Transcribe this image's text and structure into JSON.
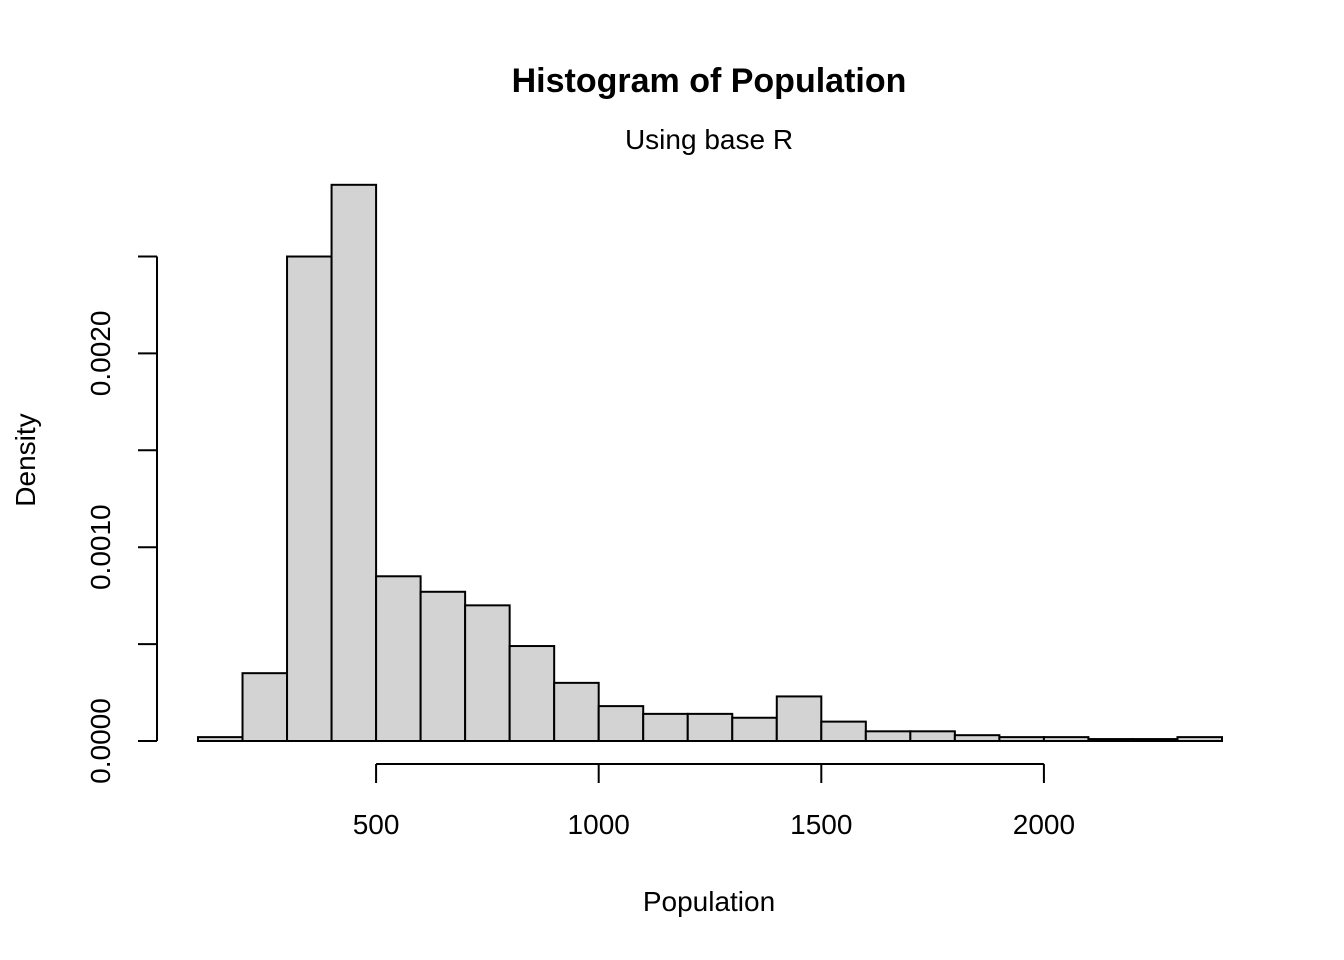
{
  "chart_data": {
    "type": "bar",
    "title": "Histogram of Population",
    "subtitle": "Using base R",
    "xlabel": "Population",
    "ylabel": "Density",
    "bin_width": 100,
    "bins": [
      {
        "start": 100,
        "end": 200,
        "density": 2e-05
      },
      {
        "start": 200,
        "end": 300,
        "density": 0.00035
      },
      {
        "start": 300,
        "end": 400,
        "density": 0.0025
      },
      {
        "start": 400,
        "end": 500,
        "density": 0.00287
      },
      {
        "start": 500,
        "end": 600,
        "density": 0.00085
      },
      {
        "start": 600,
        "end": 700,
        "density": 0.00077
      },
      {
        "start": 700,
        "end": 800,
        "density": 0.0007
      },
      {
        "start": 800,
        "end": 900,
        "density": 0.00049
      },
      {
        "start": 900,
        "end": 1000,
        "density": 0.0003
      },
      {
        "start": 1000,
        "end": 1100,
        "density": 0.00018
      },
      {
        "start": 1100,
        "end": 1200,
        "density": 0.00014
      },
      {
        "start": 1200,
        "end": 1300,
        "density": 0.00014
      },
      {
        "start": 1300,
        "end": 1400,
        "density": 0.00012
      },
      {
        "start": 1400,
        "end": 1500,
        "density": 0.00023
      },
      {
        "start": 1500,
        "end": 1600,
        "density": 0.0001
      },
      {
        "start": 1600,
        "end": 1700,
        "density": 5e-05
      },
      {
        "start": 1700,
        "end": 1800,
        "density": 5e-05
      },
      {
        "start": 1800,
        "end": 1900,
        "density": 3e-05
      },
      {
        "start": 1900,
        "end": 2000,
        "density": 2e-05
      },
      {
        "start": 2000,
        "end": 2100,
        "density": 2e-05
      },
      {
        "start": 2100,
        "end": 2200,
        "density": 1e-05
      },
      {
        "start": 2200,
        "end": 2300,
        "density": 1e-05
      },
      {
        "start": 2300,
        "end": 2400,
        "density": 2e-05
      }
    ],
    "xlim": [
      100,
      2400
    ],
    "ylim": [
      0,
      0.0029
    ],
    "x_ticks": [
      500,
      1000,
      1500,
      2000
    ],
    "x_tick_labels": [
      "500",
      "1000",
      "1500",
      "2000"
    ],
    "y_ticks": [
      0,
      0.0005,
      0.001,
      0.0015,
      0.002,
      0.0025
    ],
    "y_tick_labels": [
      "0.0000",
      "",
      "0.0010",
      "",
      "0.0020",
      ""
    ],
    "grid": false,
    "colors": {
      "bar_fill": "#d3d3d3",
      "bar_stroke": "#000000"
    }
  }
}
